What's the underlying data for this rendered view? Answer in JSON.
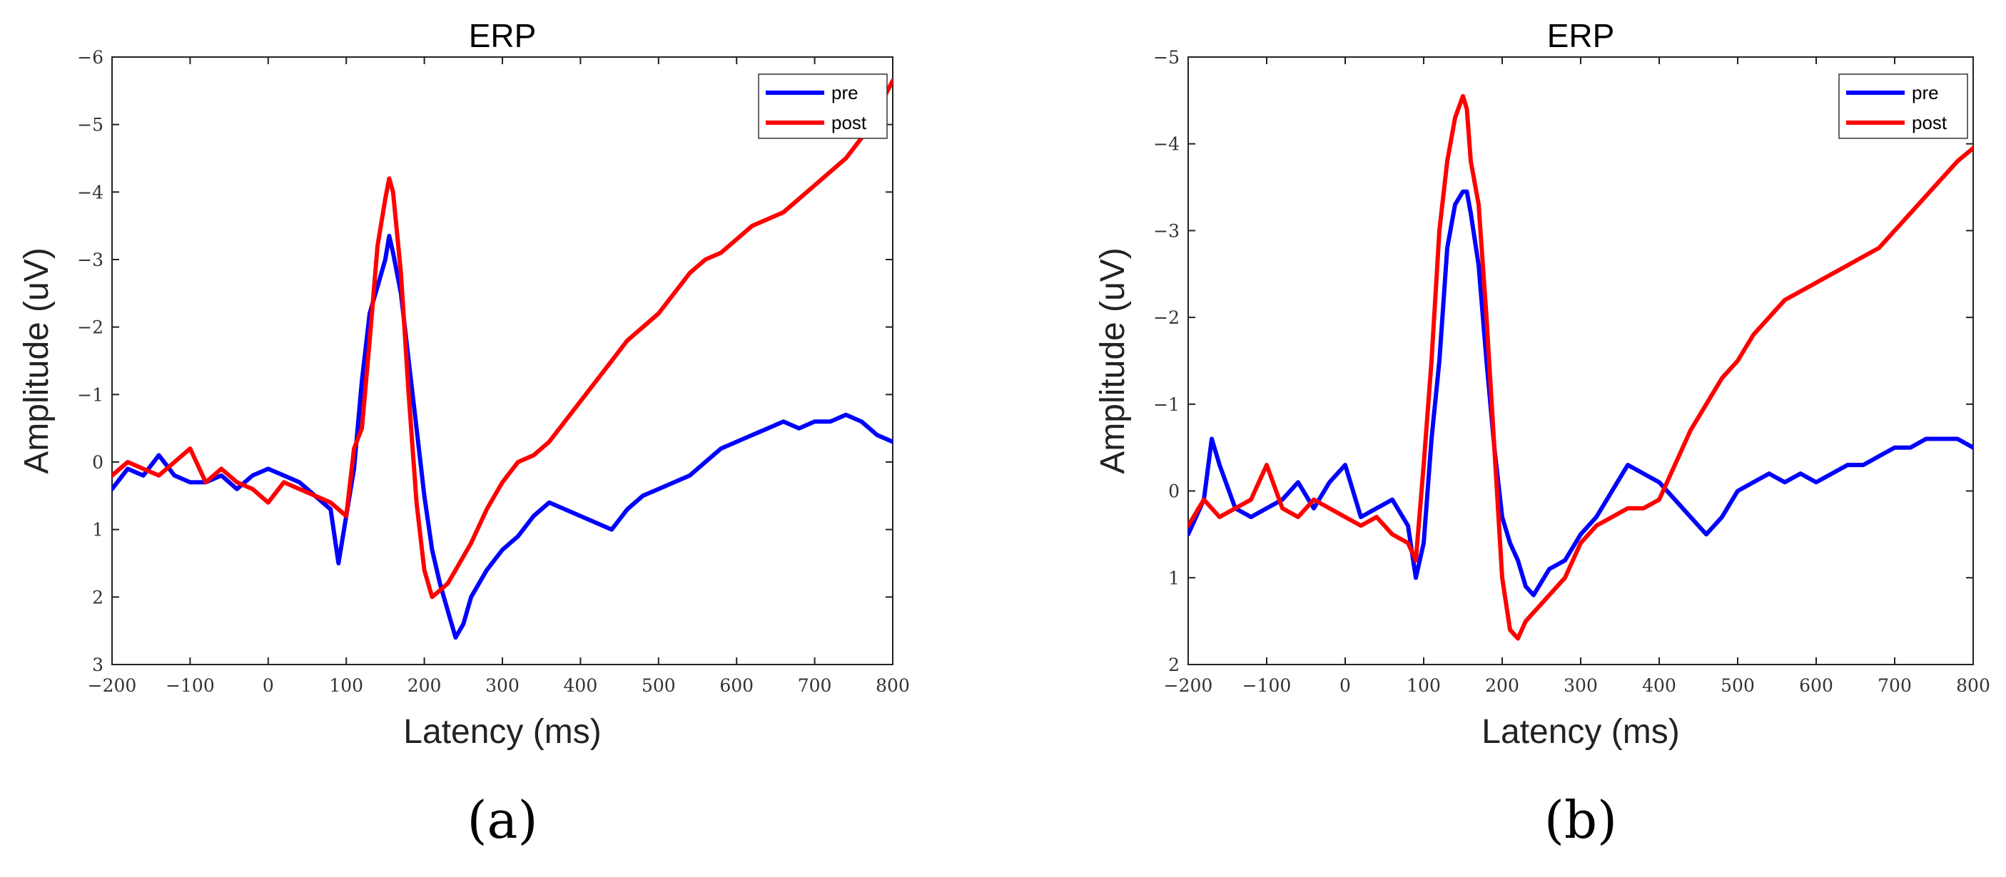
{
  "chart_data": [
    {
      "type": "line",
      "panel_label": "(a)",
      "title": "ERP",
      "xlabel": "Latency (ms)",
      "ylabel": "Amplitude (uV)",
      "xlim": [
        -200,
        800
      ],
      "ylim": [
        -6,
        3
      ],
      "y_reversed": true,
      "xticks": [
        -200,
        -100,
        0,
        100,
        200,
        300,
        400,
        500,
        600,
        700,
        800
      ],
      "xtick_labels": [
        "−200",
        "−100",
        "0",
        "100",
        "200",
        "300",
        "400",
        "500",
        "600",
        "700",
        "800"
      ],
      "yticks": [
        -6,
        -5,
        -4,
        -3,
        -2,
        -1,
        0,
        1,
        2,
        3
      ],
      "ytick_labels": [
        "−6",
        "−5",
        "−4",
        "−3",
        "−2",
        "−1",
        "0",
        "1",
        "2",
        "3"
      ],
      "grid": false,
      "legend_position": "top-right",
      "series": [
        {
          "name": "pre",
          "color": "#0000ff",
          "x": [
            -200,
            -180,
            -160,
            -140,
            -120,
            -100,
            -80,
            -60,
            -40,
            -20,
            0,
            20,
            40,
            60,
            80,
            90,
            100,
            110,
            120,
            130,
            140,
            150,
            155,
            160,
            170,
            180,
            190,
            200,
            210,
            220,
            230,
            240,
            250,
            260,
            280,
            300,
            320,
            340,
            360,
            380,
            400,
            420,
            440,
            460,
            480,
            500,
            520,
            540,
            560,
            580,
            600,
            620,
            640,
            660,
            680,
            700,
            720,
            740,
            760,
            780,
            800
          ],
          "values": [
            0.4,
            0.1,
            0.2,
            -0.1,
            0.2,
            0.3,
            0.3,
            0.2,
            0.4,
            0.2,
            0.1,
            0.2,
            0.3,
            0.5,
            0.7,
            1.5,
            0.8,
            0.1,
            -1.2,
            -2.2,
            -2.6,
            -3.0,
            -3.35,
            -3.1,
            -2.5,
            -1.5,
            -0.5,
            0.5,
            1.3,
            1.8,
            2.2,
            2.6,
            2.4,
            2.0,
            1.6,
            1.3,
            1.1,
            0.8,
            0.6,
            0.7,
            0.8,
            0.9,
            1.0,
            0.7,
            0.5,
            0.4,
            0.3,
            0.2,
            0.0,
            -0.2,
            -0.3,
            -0.4,
            -0.5,
            -0.6,
            -0.5,
            -0.6,
            -0.6,
            -0.7,
            -0.6,
            -0.4,
            -0.3
          ]
        },
        {
          "name": "post",
          "color": "#ff0000",
          "x": [
            -200,
            -180,
            -160,
            -140,
            -120,
            -100,
            -80,
            -60,
            -40,
            -20,
            0,
            20,
            40,
            60,
            80,
            100,
            110,
            120,
            130,
            140,
            150,
            155,
            160,
            170,
            180,
            190,
            200,
            210,
            220,
            230,
            240,
            260,
            280,
            300,
            320,
            340,
            360,
            380,
            400,
            420,
            440,
            460,
            480,
            500,
            520,
            540,
            560,
            580,
            600,
            620,
            640,
            660,
            680,
            700,
            720,
            740,
            760,
            780,
            800
          ],
          "values": [
            0.2,
            0.0,
            0.1,
            0.2,
            0.0,
            -0.2,
            0.3,
            0.1,
            0.3,
            0.4,
            0.6,
            0.3,
            0.4,
            0.5,
            0.6,
            0.8,
            -0.2,
            -0.5,
            -1.8,
            -3.2,
            -3.9,
            -4.2,
            -4.0,
            -2.8,
            -1.0,
            0.6,
            1.6,
            2.0,
            1.9,
            1.8,
            1.6,
            1.2,
            0.7,
            0.3,
            0.0,
            -0.1,
            -0.3,
            -0.6,
            -0.9,
            -1.2,
            -1.5,
            -1.8,
            -2.0,
            -2.2,
            -2.5,
            -2.8,
            -3.0,
            -3.1,
            -3.3,
            -3.5,
            -3.6,
            -3.7,
            -3.9,
            -4.1,
            -4.3,
            -4.5,
            -4.8,
            -5.2,
            -5.65
          ]
        }
      ]
    },
    {
      "type": "line",
      "panel_label": "(b)",
      "title": "ERP",
      "xlabel": "Latency (ms)",
      "ylabel": "Amplitude (uV)",
      "xlim": [
        -200,
        800
      ],
      "ylim": [
        -5,
        2
      ],
      "y_reversed": true,
      "xticks": [
        -200,
        -100,
        0,
        100,
        200,
        300,
        400,
        500,
        600,
        700,
        800
      ],
      "xtick_labels": [
        "−200",
        "−100",
        "0",
        "100",
        "200",
        "300",
        "400",
        "500",
        "600",
        "700",
        "800"
      ],
      "yticks": [
        -5,
        -4,
        -3,
        -2,
        -1,
        0,
        1,
        2
      ],
      "ytick_labels": [
        "−5",
        "−4",
        "−3",
        "−2",
        "−1",
        "0",
        "1",
        "2"
      ],
      "grid": false,
      "legend_position": "top-right",
      "series": [
        {
          "name": "pre",
          "color": "#0000ff",
          "x": [
            -200,
            -180,
            -170,
            -160,
            -140,
            -120,
            -100,
            -80,
            -60,
            -40,
            -20,
            0,
            20,
            40,
            60,
            80,
            90,
            100,
            110,
            120,
            130,
            140,
            150,
            155,
            160,
            170,
            180,
            190,
            200,
            210,
            220,
            230,
            240,
            260,
            280,
            300,
            320,
            340,
            360,
            380,
            400,
            420,
            440,
            460,
            480,
            500,
            520,
            540,
            560,
            580,
            600,
            620,
            640,
            660,
            680,
            700,
            720,
            740,
            760,
            780,
            800
          ],
          "values": [
            0.5,
            0.1,
            -0.6,
            -0.3,
            0.2,
            0.3,
            0.2,
            0.1,
            -0.1,
            0.2,
            -0.1,
            -0.3,
            0.3,
            0.2,
            0.1,
            0.4,
            1.0,
            0.6,
            -0.6,
            -1.5,
            -2.8,
            -3.3,
            -3.45,
            -3.45,
            -3.2,
            -2.6,
            -1.5,
            -0.5,
            0.3,
            0.6,
            0.8,
            1.1,
            1.2,
            0.9,
            0.8,
            0.5,
            0.3,
            0.0,
            -0.3,
            -0.2,
            -0.1,
            0.1,
            0.3,
            0.5,
            0.3,
            0.0,
            -0.1,
            -0.2,
            -0.1,
            -0.2,
            -0.1,
            -0.2,
            -0.3,
            -0.3,
            -0.4,
            -0.5,
            -0.5,
            -0.6,
            -0.6,
            -0.6,
            -0.5
          ]
        },
        {
          "name": "post",
          "color": "#ff0000",
          "x": [
            -200,
            -180,
            -160,
            -140,
            -120,
            -100,
            -80,
            -60,
            -40,
            -20,
            0,
            20,
            40,
            60,
            80,
            90,
            100,
            110,
            120,
            130,
            140,
            150,
            155,
            160,
            170,
            180,
            190,
            200,
            210,
            220,
            230,
            240,
            260,
            280,
            300,
            320,
            340,
            360,
            380,
            400,
            420,
            440,
            460,
            480,
            500,
            520,
            540,
            560,
            580,
            600,
            620,
            640,
            660,
            680,
            700,
            720,
            740,
            760,
            780,
            800
          ],
          "values": [
            0.4,
            0.1,
            0.3,
            0.2,
            0.1,
            -0.3,
            0.2,
            0.3,
            0.1,
            0.2,
            0.3,
            0.4,
            0.3,
            0.5,
            0.6,
            0.8,
            -0.3,
            -1.5,
            -3.0,
            -3.8,
            -4.3,
            -4.55,
            -4.4,
            -3.8,
            -3.3,
            -2.0,
            -0.5,
            1.0,
            1.6,
            1.7,
            1.5,
            1.4,
            1.2,
            1.0,
            0.6,
            0.4,
            0.3,
            0.2,
            0.2,
            0.1,
            -0.3,
            -0.7,
            -1.0,
            -1.3,
            -1.5,
            -1.8,
            -2.0,
            -2.2,
            -2.3,
            -2.4,
            -2.5,
            -2.6,
            -2.7,
            -2.8,
            -3.0,
            -3.2,
            -3.4,
            -3.6,
            -3.8,
            -3.95
          ]
        }
      ]
    }
  ]
}
